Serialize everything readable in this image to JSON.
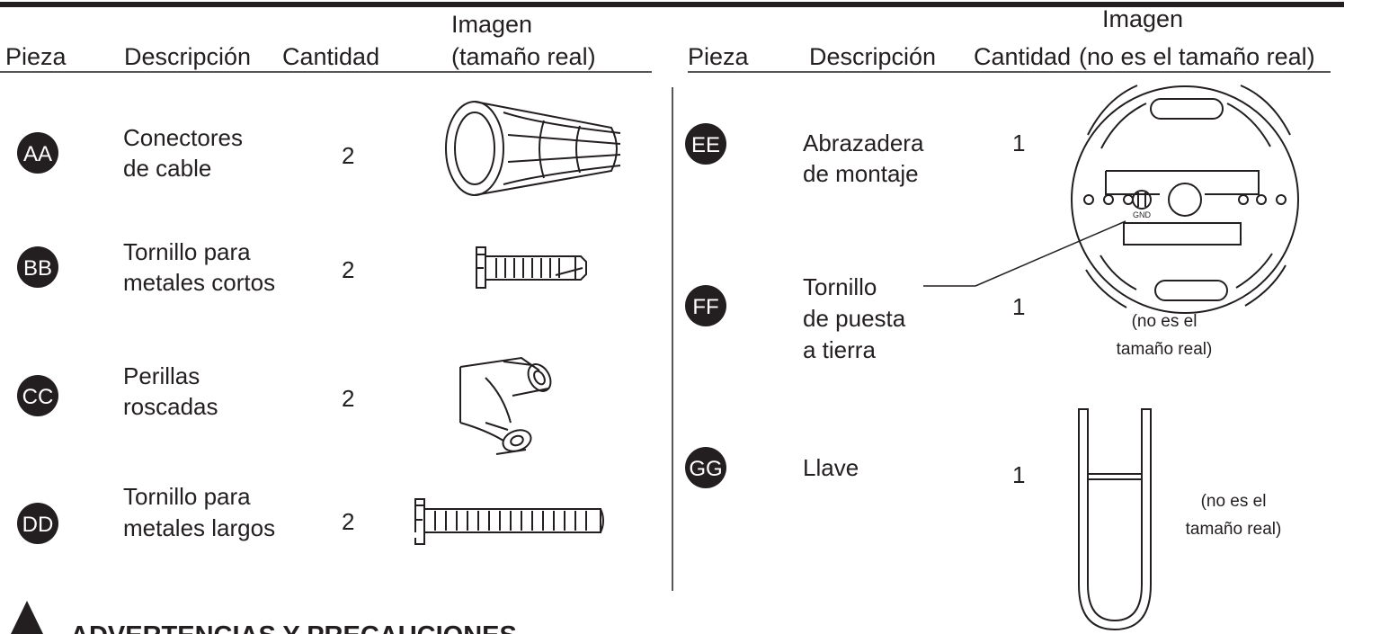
{
  "tables": [
    {
      "headers": [
        "Pieza",
        "Descripción",
        "Cantidad",
        [
          "Imagen",
          "(tamaño real)"
        ]
      ],
      "rows": [
        {
          "badge": "AA",
          "description": [
            "Conectores",
            "de cable"
          ],
          "quantity": 2
        },
        {
          "badge": "BB",
          "description": [
            "Tornillo para",
            "metales cortos"
          ],
          "quantity": 2
        },
        {
          "badge": "CC",
          "description": [
            "Perillas",
            "roscadas"
          ],
          "quantity": 2
        },
        {
          "badge": "DD",
          "description": [
            "Tornillo para",
            "metales largos"
          ],
          "quantity": 2
        }
      ]
    },
    {
      "headers": [
        "Pieza",
        "Descripción",
        "Cantidad",
        [
          "Imagen",
          "(no es el tamaño real)"
        ]
      ],
      "rows": [
        {
          "badge": "EE",
          "description": [
            "Abrazadera",
            "de montaje"
          ],
          "quantity": 1
        },
        {
          "badge": "FF",
          "description": [
            "Tornillo",
            "de puesta",
            "a tierra"
          ],
          "quantity": 1
        },
        {
          "badge": "GG",
          "description": [
            "Llave"
          ],
          "quantity": 1
        }
      ]
    }
  ],
  "labels": {
    "gnd": "GND"
  },
  "notes": [
    [
      "(no es el",
      "tamaño real)"
    ],
    [
      "(no es el",
      "tamaño real)"
    ]
  ],
  "warning": {
    "title": "ADVERTENCIAS Y PRECAUCIONES"
  }
}
